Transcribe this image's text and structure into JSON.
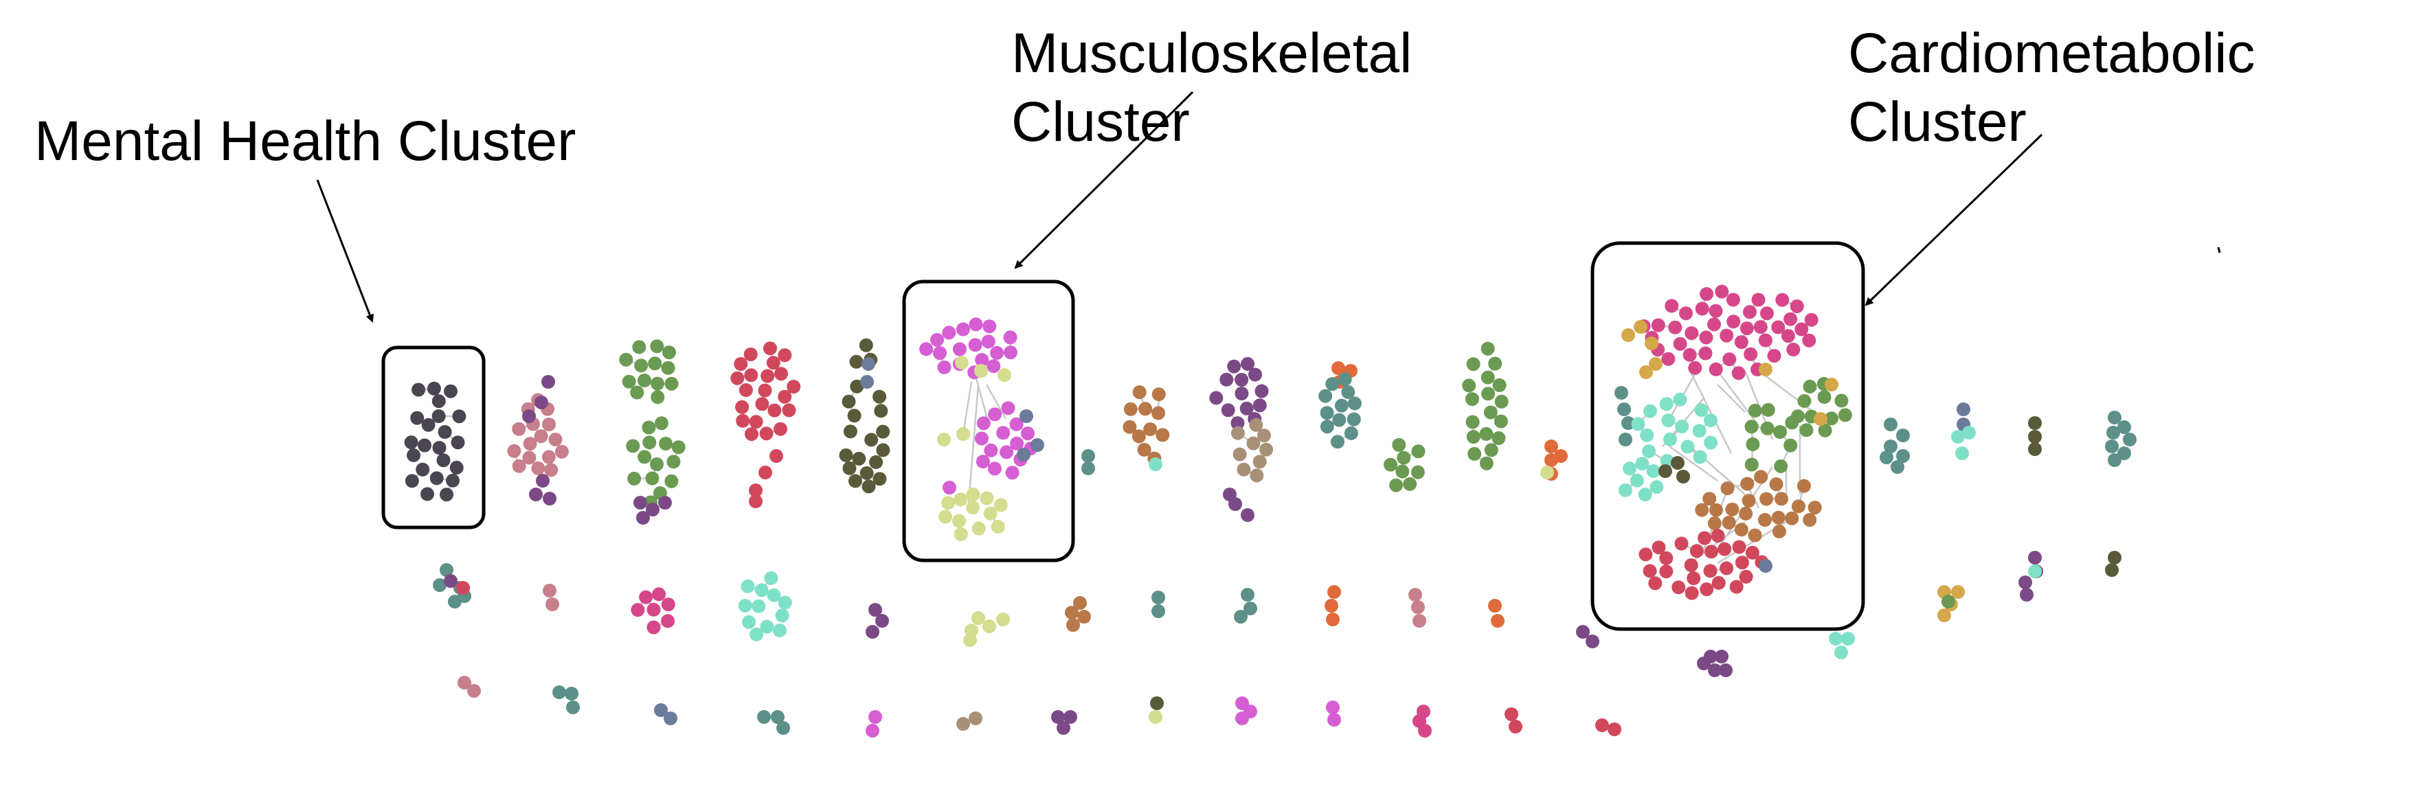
{
  "labels": {
    "mental": "Mental Health Cluster",
    "musculo_line1": "Musculoskeletal",
    "musculo_line2": "Cluster",
    "cardio_line1": "Cardiometabolic",
    "cardio_line2": "Cluster"
  },
  "colors": {
    "charcoal": "#4a4550",
    "rose": "#c77f8b",
    "plum": "#7b4a86",
    "green": "#6b9a52",
    "red": "#d1485c",
    "olive": "#5a5a3a",
    "slate": "#6b7b9a",
    "magenta": "#d65ed3",
    "sage": "#d4dc8e",
    "teal": "#5d9088",
    "copper": "#b87848",
    "taupe": "#a89078",
    "orange": "#e06a3a",
    "mint": "#7fe0c8",
    "pink": "#d6478a",
    "ochre": "#d4a84a",
    "edge": "#c8c8c8",
    "box": "#000000",
    "text": "#000000"
  }
}
